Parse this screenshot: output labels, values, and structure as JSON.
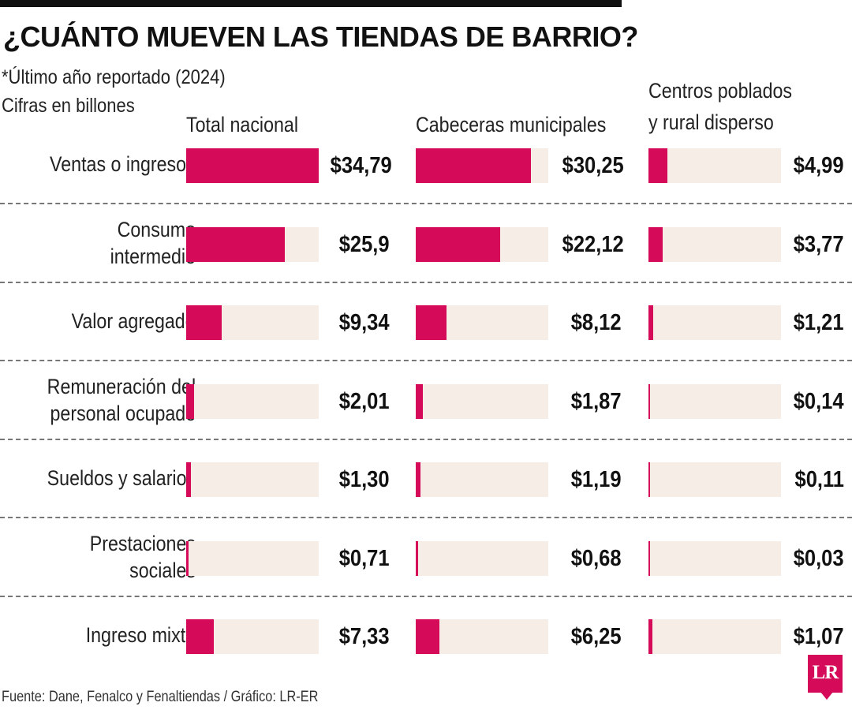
{
  "title": "¿CUÁNTO MUEVEN LAS TIENDAS DE BARRIO?",
  "notes": [
    "*Último año reportado (2024)",
    "Cifras en billones"
  ],
  "columns": [
    {
      "label_lines": [
        "Total nacional"
      ]
    },
    {
      "label_lines": [
        "Cabeceras municipales"
      ]
    },
    {
      "label_lines": [
        "Centros poblados",
        "y rural disperso"
      ]
    }
  ],
  "source": "Fuente: Dane, Fenalco y Fenaltiendas / Gráfico: LR-ER",
  "logo_text": "LR",
  "colors": {
    "bar": "#d50b5a",
    "track": "#f5ede6"
  },
  "chart_data": {
    "type": "bar",
    "orientation": "horizontal",
    "unit": "billones",
    "xlim": [
      0,
      34.79
    ],
    "categories": [
      {
        "lines": [
          "Ventas o ingresos"
        ]
      },
      {
        "lines": [
          "Consumo intermedio"
        ]
      },
      {
        "lines": [
          "Valor agregado"
        ]
      },
      {
        "lines": [
          "Remuneración del",
          "personal ocupado"
        ]
      },
      {
        "lines": [
          "Sueldos y salarios"
        ]
      },
      {
        "lines": [
          "Prestaciones sociales"
        ]
      },
      {
        "lines": [
          "Ingreso mixto"
        ]
      }
    ],
    "series": [
      {
        "name": "Total nacional",
        "values": [
          34.79,
          25.9,
          9.34,
          2.01,
          1.3,
          0.71,
          7.33
        ],
        "labels": [
          "$34,79",
          "$25,9",
          "$9,34",
          "$2,01",
          "$1,30",
          "$0,71",
          "$7,33"
        ]
      },
      {
        "name": "Cabeceras municipales",
        "values": [
          30.25,
          22.12,
          8.12,
          1.87,
          1.19,
          0.68,
          6.25
        ],
        "labels": [
          "$30,25",
          "$22,12",
          "$8,12",
          "$1,87",
          "$1,19",
          "$0,68",
          "$6,25"
        ]
      },
      {
        "name": "Centros poblados y rural disperso",
        "values": [
          4.99,
          3.77,
          1.21,
          0.14,
          0.11,
          0.03,
          1.07
        ],
        "labels": [
          "$4,99",
          "$3,77",
          "$1,21",
          "$0,14",
          "$0,11",
          "$0,03",
          "$1,07"
        ]
      }
    ]
  }
}
